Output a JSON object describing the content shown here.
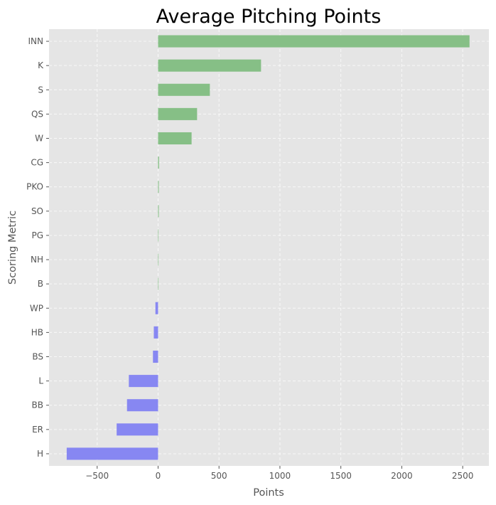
{
  "chart_data": {
    "type": "bar",
    "orientation": "horizontal",
    "title": "Average Pitching Points",
    "xlabel": "Points",
    "ylabel": "Scoring Metric",
    "xlim": [
      -895,
      2715
    ],
    "xticks": [
      -500,
      0,
      500,
      1000,
      1500,
      2000,
      2500
    ],
    "xtick_labels": [
      "−500",
      "0",
      "500",
      "1000",
      "1500",
      "2000",
      "2500"
    ],
    "grid": true,
    "categories": [
      "INN",
      "K",
      "S",
      "QS",
      "W",
      "CG",
      "PKO",
      "SO",
      "PG",
      "NH",
      "B",
      "WP",
      "HB",
      "BS",
      "L",
      "BB",
      "ER",
      "H"
    ],
    "values": [
      2556,
      845,
      425,
      320,
      275,
      8,
      6,
      6,
      0,
      0,
      0,
      -22,
      -35,
      -42,
      -240,
      -255,
      -340,
      -750
    ],
    "colors": {
      "positive": "#86bf86",
      "negative": "#8787f2",
      "background": "#e5e5e5",
      "text": "#555555"
    }
  }
}
